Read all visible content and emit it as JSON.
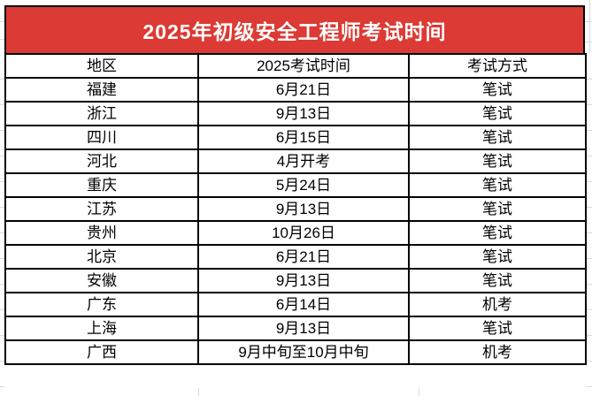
{
  "banner": {
    "title": "2025年初级安全工程师考试时间",
    "bg_color": "#DC3A34",
    "text_color": "#FFFFFF"
  },
  "table": {
    "headers": [
      "地区",
      "2025考试时间",
      "考试方式"
    ],
    "rows": [
      [
        "福建",
        "6月21日",
        "笔试"
      ],
      [
        "浙江",
        "9月13日",
        "笔试"
      ],
      [
        "四川",
        "6月15日",
        "笔试"
      ],
      [
        "河北",
        "4月开考",
        "笔试"
      ],
      [
        "重庆",
        "5月24日",
        "笔试"
      ],
      [
        "江苏",
        "9月13日",
        "笔试"
      ],
      [
        "贵州",
        "10月26日",
        "笔试"
      ],
      [
        "北京",
        "6月21日",
        "笔试"
      ],
      [
        "安徽",
        "9月13日",
        "笔试"
      ],
      [
        "广东",
        "6月14日",
        "机考"
      ],
      [
        "上海",
        "9月13日",
        "笔试"
      ],
      [
        "广西",
        "9月中旬至10月中旬",
        "机考"
      ]
    ]
  }
}
